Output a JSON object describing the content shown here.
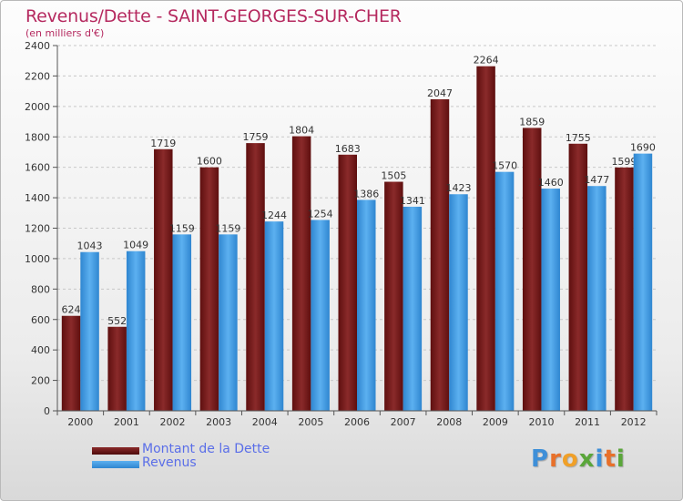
{
  "chart_data": {
    "type": "bar",
    "title": "Revenus/Dette - SAINT-GEORGES-SUR-CHER",
    "subtitle": "(en milliers d'€)",
    "categories": [
      "2000",
      "2001",
      "2002",
      "2003",
      "2004",
      "2005",
      "2006",
      "2007",
      "2008",
      "2009",
      "2010",
      "2011",
      "2012"
    ],
    "series": [
      {
        "name": "Montant de la Dette",
        "color": "#7a1a1a",
        "values": [
          624,
          552,
          1719,
          1600,
          1759,
          1804,
          1683,
          1505,
          2047,
          2264,
          1859,
          1755,
          1599
        ]
      },
      {
        "name": "Revenus",
        "color": "#3d9be3",
        "values": [
          1043,
          1049,
          1159,
          1159,
          1244,
          1254,
          1386,
          1341,
          1423,
          1570,
          1460,
          1477,
          1690
        ]
      }
    ],
    "ylim": [
      0,
      2400
    ],
    "yticks": [
      0,
      200,
      400,
      600,
      800,
      1000,
      1200,
      1400,
      1600,
      1800,
      2000,
      2200,
      2400
    ],
    "grid": true,
    "legend_position": "bottom-left"
  },
  "brand": {
    "letters": [
      {
        "ch": "P",
        "color": "#3e8fd8"
      },
      {
        "ch": "r",
        "color": "#e8702a"
      },
      {
        "ch": "o",
        "color": "#f0a028"
      },
      {
        "ch": "x",
        "color": "#5aa63a"
      },
      {
        "ch": "i",
        "color": "#3e8fd8"
      },
      {
        "ch": "t",
        "color": "#e8702a"
      },
      {
        "ch": "i",
        "color": "#5aa63a"
      }
    ]
  }
}
